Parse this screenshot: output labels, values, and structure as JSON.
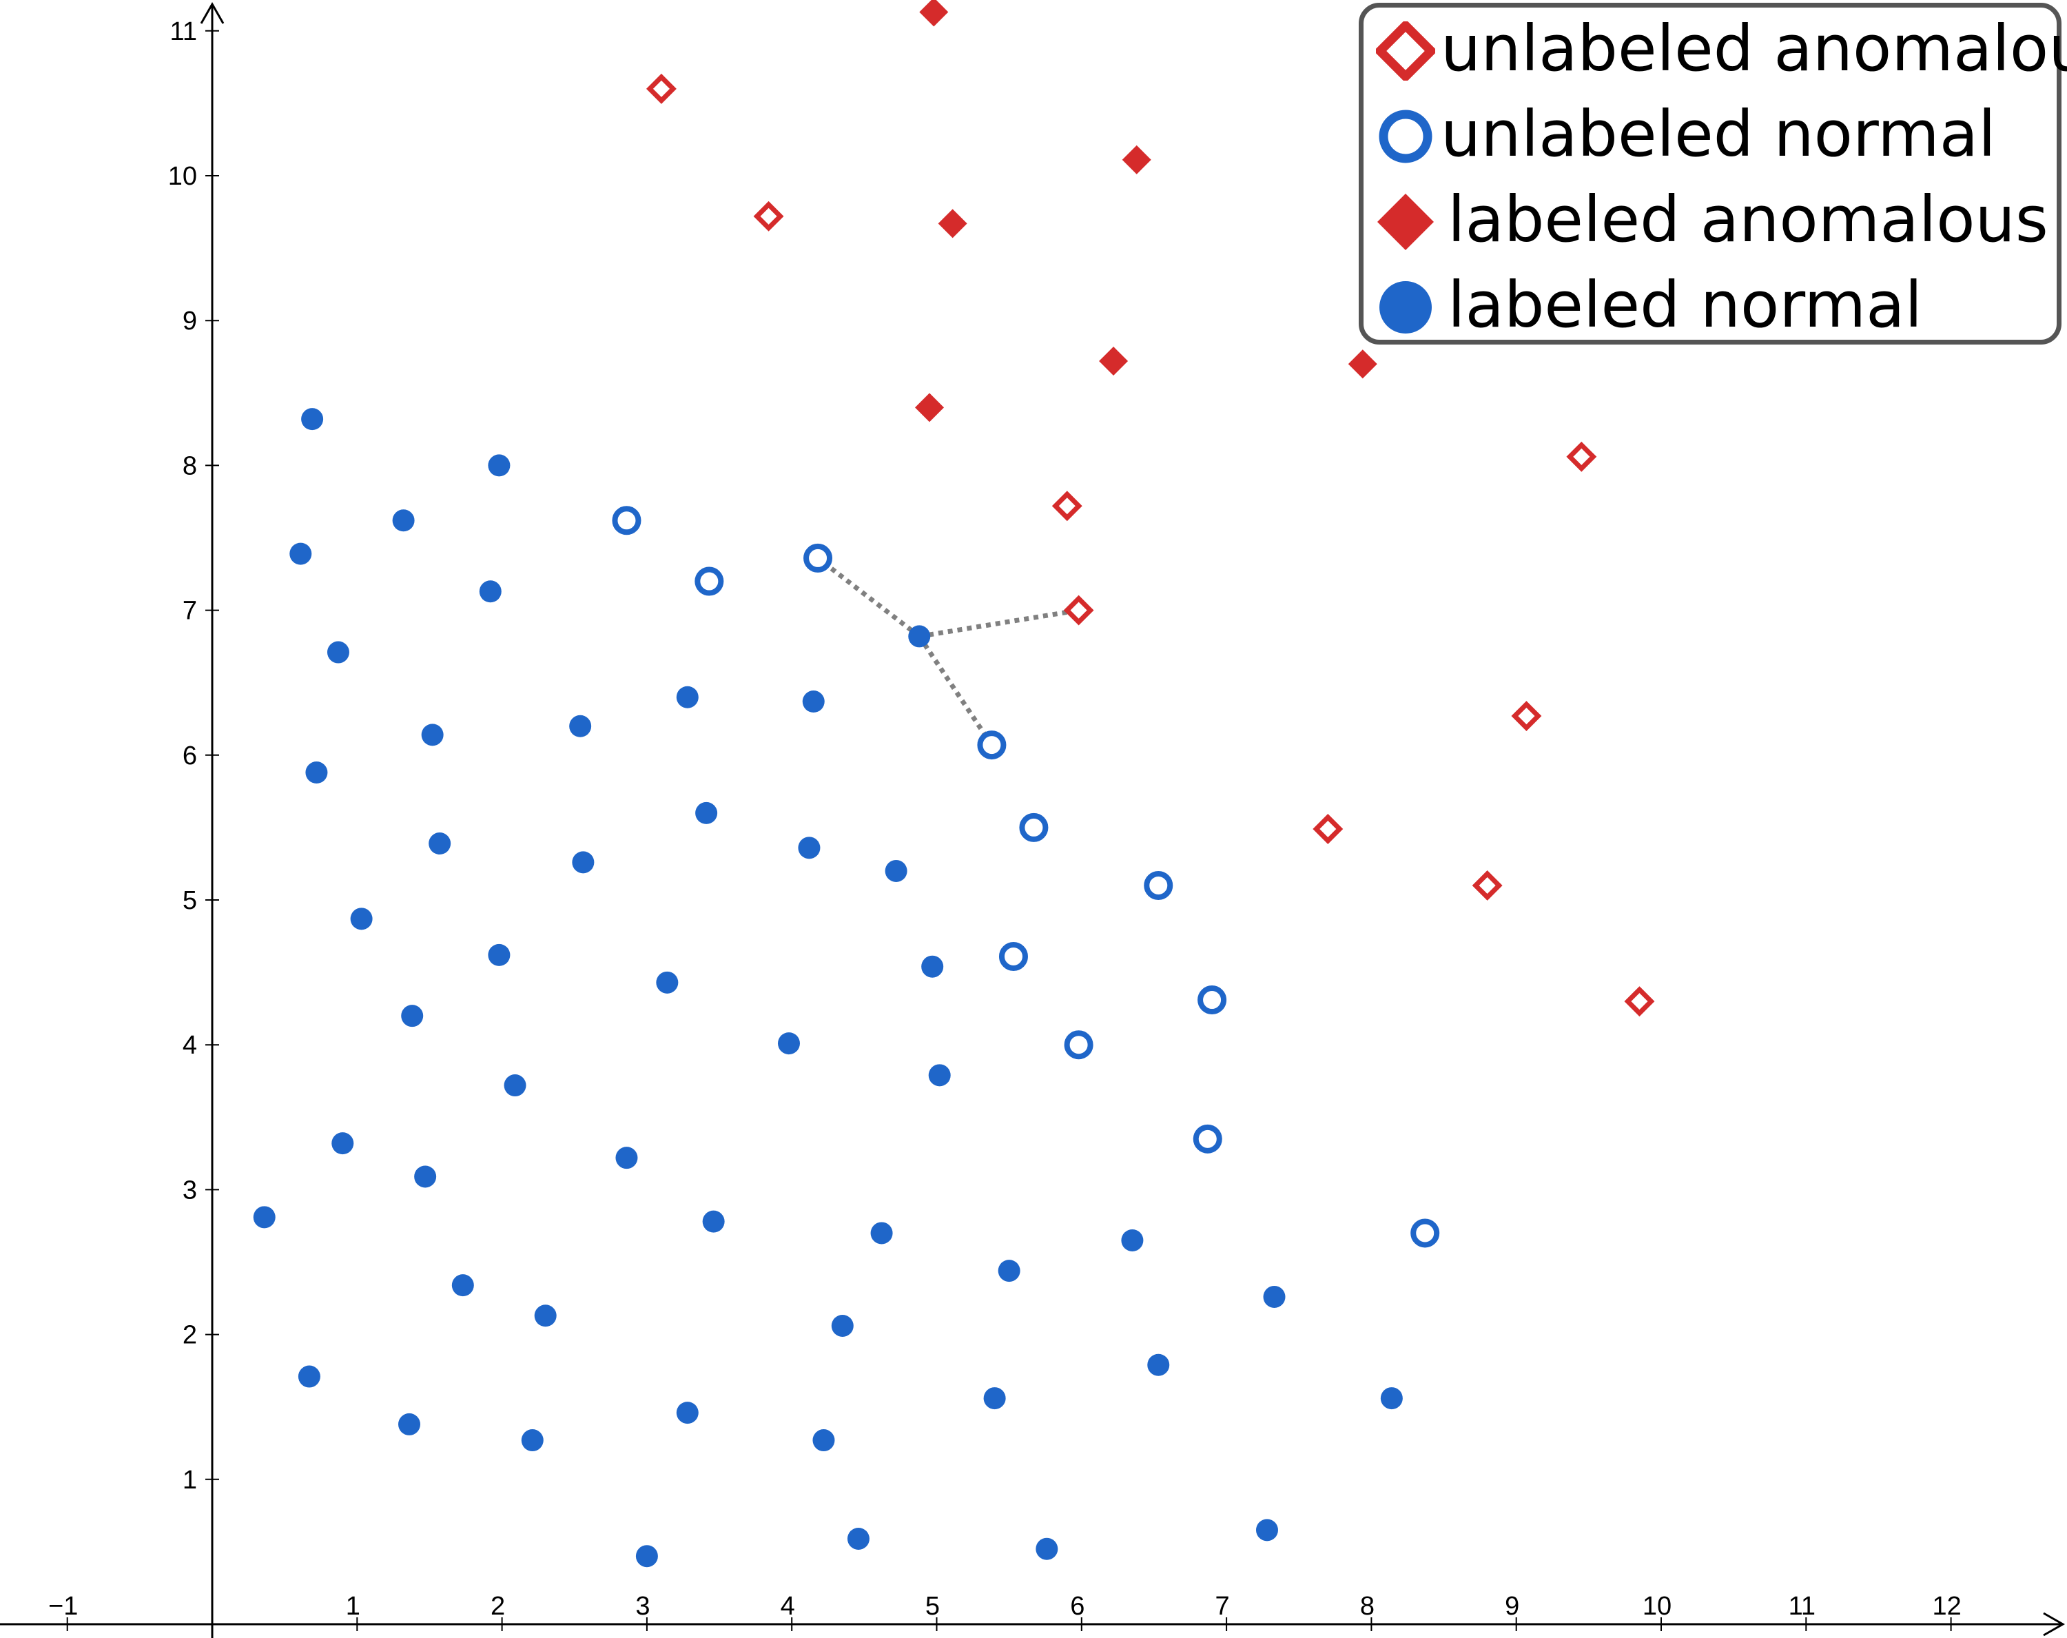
{
  "colors": {
    "normal": "#1f66c9",
    "anomalous": "#d52b2b",
    "axis": "#000000",
    "connector": "#808080"
  },
  "chart_data": {
    "type": "scatter",
    "title": "",
    "xlabel": "",
    "ylabel": "",
    "xlim": [
      -1.45,
      12.8
    ],
    "ylim": [
      -0.1,
      11.2
    ],
    "x_ticks": [
      -1,
      1,
      2,
      3,
      4,
      5,
      6,
      7,
      8,
      9,
      10,
      11,
      12
    ],
    "x_tick_labels": [
      "−1",
      "1",
      "2",
      "3",
      "4",
      "5",
      "6",
      "7",
      "8",
      "9",
      "10",
      "11",
      "12"
    ],
    "y_ticks": [
      1,
      2,
      3,
      4,
      5,
      6,
      7,
      8,
      9,
      10,
      11
    ],
    "y_tick_labels": [
      "1",
      "2",
      "3",
      "4",
      "5",
      "6",
      "7",
      "8",
      "9",
      "10",
      "11"
    ],
    "grid": false,
    "legend_position": "top-right",
    "series": [
      {
        "name": "unlabeled anomalous",
        "marker": "hollow-diamond",
        "points": [
          [
            3.1,
            10.6
          ],
          [
            3.84,
            9.72
          ],
          [
            5.9,
            7.72
          ],
          [
            5.98,
            7.0
          ],
          [
            9.45,
            8.06
          ],
          [
            9.07,
            6.27
          ],
          [
            7.7,
            5.49
          ],
          [
            8.8,
            5.1
          ],
          [
            9.85,
            4.3
          ]
        ]
      },
      {
        "name": "unlabeled normal",
        "marker": "hollow-circle",
        "points": [
          [
            2.86,
            7.62
          ],
          [
            3.43,
            7.2
          ],
          [
            4.18,
            7.36
          ],
          [
            5.38,
            6.07
          ],
          [
            5.67,
            5.5
          ],
          [
            6.53,
            5.1
          ],
          [
            5.53,
            4.61
          ],
          [
            6.9,
            4.31
          ],
          [
            5.98,
            4.0
          ],
          [
            6.87,
            3.35
          ],
          [
            8.37,
            2.7
          ]
        ]
      },
      {
        "name": "labeled anomalous",
        "marker": "filled-diamond",
        "points": [
          [
            4.98,
            11.13
          ],
          [
            6.38,
            10.11
          ],
          [
            5.11,
            9.67
          ],
          [
            6.22,
            8.72
          ],
          [
            4.95,
            8.4
          ],
          [
            7.94,
            8.7
          ]
        ]
      },
      {
        "name": "labeled normal",
        "marker": "filled-circle",
        "points": [
          [
            0.69,
            8.32
          ],
          [
            1.98,
            8.0
          ],
          [
            1.32,
            7.62
          ],
          [
            0.61,
            7.39
          ],
          [
            1.92,
            7.13
          ],
          [
            0.87,
            6.71
          ],
          [
            4.88,
            6.82
          ],
          [
            1.52,
            6.14
          ],
          [
            2.54,
            6.2
          ],
          [
            3.28,
            6.4
          ],
          [
            4.15,
            6.37
          ],
          [
            0.72,
            5.88
          ],
          [
            3.41,
            5.6
          ],
          [
            1.57,
            5.39
          ],
          [
            2.56,
            5.26
          ],
          [
            4.12,
            5.36
          ],
          [
            4.72,
            5.2
          ],
          [
            1.03,
            4.87
          ],
          [
            1.98,
            4.62
          ],
          [
            3.14,
            4.43
          ],
          [
            4.97,
            4.54
          ],
          [
            1.38,
            4.2
          ],
          [
            2.09,
            3.72
          ],
          [
            3.98,
            4.01
          ],
          [
            5.02,
            3.79
          ],
          [
            0.9,
            3.32
          ],
          [
            1.47,
            3.09
          ],
          [
            2.86,
            3.22
          ],
          [
            0.36,
            2.81
          ],
          [
            3.46,
            2.78
          ],
          [
            4.62,
            2.7
          ],
          [
            6.35,
            2.65
          ],
          [
            1.73,
            2.34
          ],
          [
            5.5,
            2.44
          ],
          [
            7.33,
            2.26
          ],
          [
            2.3,
            2.13
          ],
          [
            4.35,
            2.06
          ],
          [
            6.53,
            1.79
          ],
          [
            0.67,
            1.71
          ],
          [
            5.4,
            1.56
          ],
          [
            8.14,
            1.56
          ],
          [
            1.36,
            1.38
          ],
          [
            3.28,
            1.46
          ],
          [
            2.21,
            1.27
          ],
          [
            4.22,
            1.27
          ],
          [
            4.46,
            0.59
          ],
          [
            5.76,
            0.52
          ],
          [
            7.28,
            0.65
          ],
          [
            3.0,
            0.47
          ]
        ]
      }
    ],
    "connectors": [
      {
        "from": [
          4.88,
          6.82
        ],
        "to": [
          4.18,
          7.36
        ]
      },
      {
        "from": [
          4.88,
          6.82
        ],
        "to": [
          5.98,
          7.0
        ]
      },
      {
        "from": [
          4.88,
          6.82
        ],
        "to": [
          5.38,
          6.07
        ]
      }
    ]
  },
  "legend": {
    "items": [
      {
        "label": "unlabeled anomalous",
        "marker": "hollow-diamond"
      },
      {
        "label": "unlabeled normal",
        "marker": "hollow-circle"
      },
      {
        "label": "labeled anomalous",
        "marker": "filled-diamond"
      },
      {
        "label": "labeled normal",
        "marker": "filled-circle"
      }
    ]
  }
}
